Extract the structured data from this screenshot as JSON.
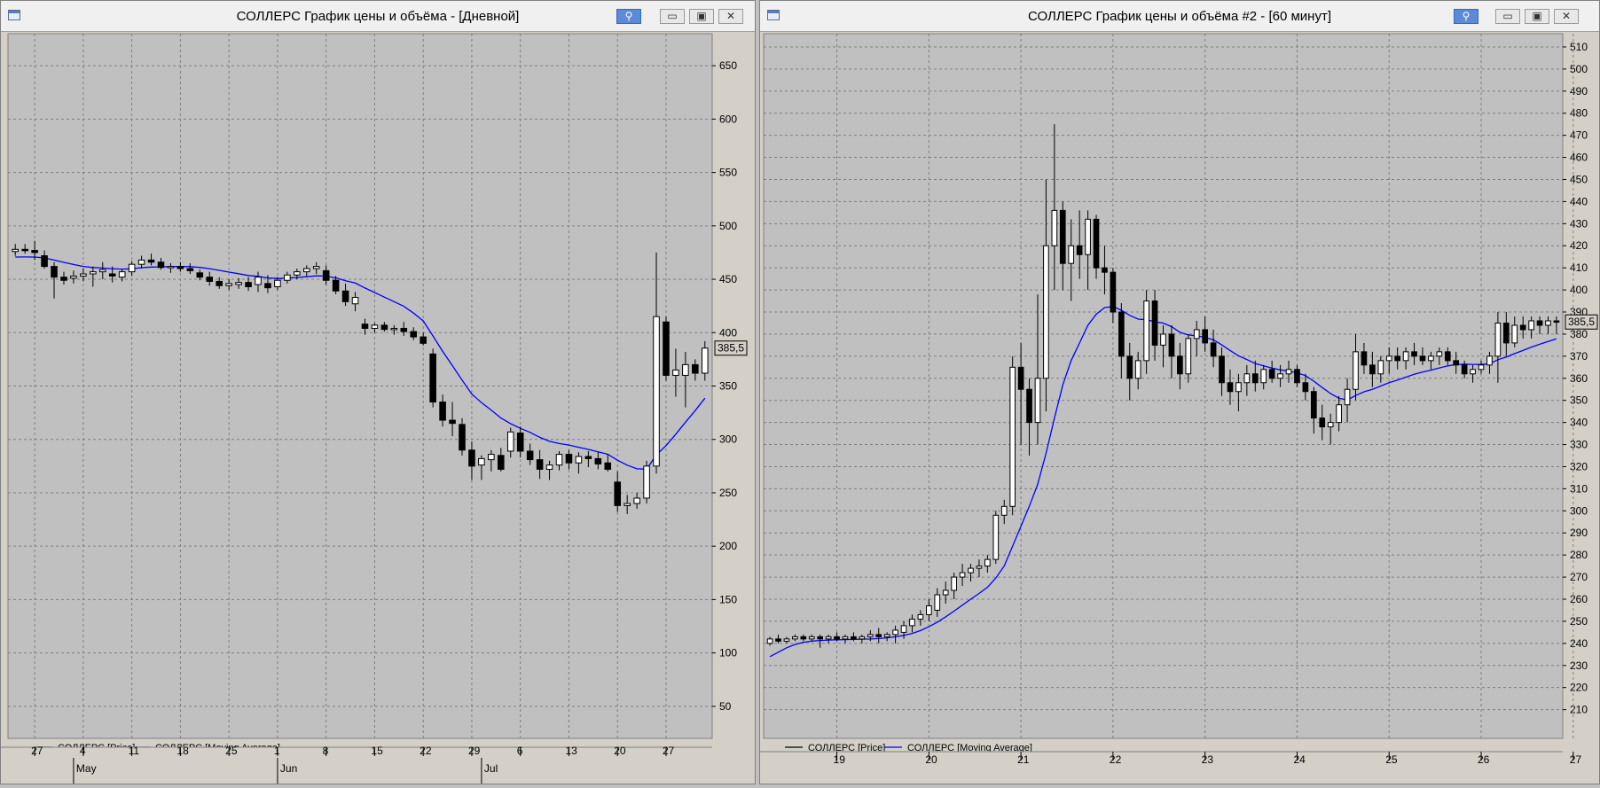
{
  "windows": [
    {
      "title": "СОЛЛЕРС График цены и объёма - [Дневной]",
      "icons": [
        "window-icon",
        "pin-icon",
        "minimize-icon",
        "maximize-icon",
        "close-icon"
      ]
    },
    {
      "title": "СОЛЛЕРС График цены и объёма #2 - [60 минут]",
      "icons": [
        "window-icon",
        "pin-icon",
        "minimize-icon",
        "maximize-icon",
        "close-icon"
      ]
    }
  ],
  "colors": {
    "plot_bg": "#c0c0c0",
    "grid": "#7f7f7f",
    "ma_line": "#0000ff",
    "candle_up": "#ffffff",
    "candle_down": "#000000"
  },
  "chart_data": [
    {
      "type": "candlestick",
      "title": "СОЛЛЕРС График цены и объёма - [Дневной]",
      "ylim": [
        20,
        680
      ],
      "yticks": [
        50,
        100,
        150,
        200,
        250,
        300,
        350,
        400,
        450,
        500,
        550,
        600,
        650
      ],
      "last_price_label": "385,5",
      "last_price": 385.5,
      "legend": [
        "СОЛЛЕРС [Price]",
        "СОЛЛЕРС [Moving Average]"
      ],
      "x_day_ticks": [
        {
          "label": "27",
          "i": 2
        },
        {
          "label": "4",
          "i": 7
        },
        {
          "label": "11",
          "i": 12
        },
        {
          "label": "18",
          "i": 17
        },
        {
          "label": "25",
          "i": 22
        },
        {
          "label": "1",
          "i": 27
        },
        {
          "label": "8",
          "i": 32
        },
        {
          "label": "15",
          "i": 37
        },
        {
          "label": "22",
          "i": 42
        },
        {
          "label": "29",
          "i": 47
        },
        {
          "label": "6",
          "i": 52
        },
        {
          "label": "13",
          "i": 57
        },
        {
          "label": "20",
          "i": 62
        },
        {
          "label": "27",
          "i": 67
        }
      ],
      "x_month_ticks": [
        {
          "label": "May",
          "i": 6
        },
        {
          "label": "Jun",
          "i": 27
        },
        {
          "label": "Jul",
          "i": 48
        }
      ],
      "ohlc": [
        [
          476,
          483,
          472,
          478
        ],
        [
          478,
          483,
          474,
          477
        ],
        [
          477,
          486,
          468,
          475
        ],
        [
          472,
          477,
          460,
          462
        ],
        [
          462,
          466,
          432,
          452
        ],
        [
          452,
          457,
          445,
          449
        ],
        [
          451,
          458,
          446,
          453
        ],
        [
          453,
          460,
          448,
          455
        ],
        [
          455,
          462,
          443,
          457
        ],
        [
          457,
          466,
          450,
          459
        ],
        [
          455,
          462,
          447,
          453
        ],
        [
          452,
          460,
          448,
          457
        ],
        [
          457,
          467,
          453,
          464
        ],
        [
          464,
          472,
          460,
          468
        ],
        [
          468,
          474,
          463,
          466
        ],
        [
          466,
          470,
          459,
          461
        ],
        [
          461,
          465,
          456,
          462
        ],
        [
          462,
          466,
          457,
          460
        ],
        [
          460,
          465,
          455,
          458
        ],
        [
          456,
          459,
          449,
          452
        ],
        [
          452,
          457,
          444,
          448
        ],
        [
          448,
          452,
          441,
          444
        ],
        [
          444,
          450,
          440,
          446
        ],
        [
          445,
          451,
          441,
          447
        ],
        [
          447,
          452,
          439,
          443
        ],
        [
          445,
          457,
          438,
          452
        ],
        [
          446,
          454,
          437,
          442
        ],
        [
          443,
          452,
          440,
          449
        ],
        [
          449,
          457,
          446,
          454
        ],
        [
          454,
          460,
          450,
          457
        ],
        [
          457,
          463,
          453,
          460
        ],
        [
          460,
          466,
          455,
          462
        ],
        [
          458,
          463,
          445,
          449
        ],
        [
          449,
          453,
          436,
          439
        ],
        [
          439,
          446,
          425,
          429
        ],
        [
          427,
          438,
          420,
          433
        ],
        [
          408,
          413,
          398,
          404
        ],
        [
          404,
          409,
          400,
          407
        ],
        [
          407,
          410,
          401,
          403
        ],
        [
          403,
          407,
          398,
          404
        ],
        [
          404,
          410,
          397,
          401
        ],
        [
          401,
          405,
          393,
          396
        ],
        [
          396,
          400,
          388,
          390
        ],
        [
          380,
          385,
          330,
          335
        ],
        [
          335,
          342,
          312,
          318
        ],
        [
          318,
          335,
          303,
          315
        ],
        [
          314,
          320,
          285,
          290
        ],
        [
          290,
          298,
          262,
          275
        ],
        [
          276,
          285,
          262,
          282
        ],
        [
          281,
          290,
          270,
          286
        ],
        [
          285,
          292,
          270,
          272
        ],
        [
          289,
          311,
          283,
          307
        ],
        [
          306,
          312,
          283,
          289
        ],
        [
          289,
          296,
          276,
          281
        ],
        [
          281,
          290,
          263,
          272
        ],
        [
          272,
          280,
          262,
          276
        ],
        [
          276,
          289,
          271,
          286
        ],
        [
          286,
          290,
          272,
          278
        ],
        [
          278,
          288,
          268,
          284
        ],
        [
          284,
          289,
          274,
          282
        ],
        [
          282,
          288,
          272,
          277
        ],
        [
          278,
          286,
          270,
          272
        ],
        [
          260,
          270,
          232,
          238
        ],
        [
          238,
          248,
          230,
          240
        ],
        [
          240,
          250,
          235,
          245
        ],
        [
          245,
          280,
          240,
          275
        ],
        [
          275,
          475,
          268,
          415
        ],
        [
          410,
          415,
          355,
          360
        ],
        [
          360,
          385,
          340,
          365
        ],
        [
          360,
          382,
          330,
          370
        ],
        [
          370,
          375,
          355,
          362
        ],
        [
          362,
          392,
          355,
          385.5
        ]
      ],
      "moving_average": [
        470.8,
        470.9,
        470.8,
        470,
        468,
        465.8,
        463.8,
        462,
        461,
        460.5,
        459.9,
        459.5,
        459.8,
        460.8,
        461.4,
        461.6,
        461.8,
        461.9,
        461.8,
        461.1,
        459.9,
        458.3,
        456.7,
        455.2,
        453.5,
        452.7,
        451.3,
        450.7,
        451,
        451.7,
        452.4,
        453.2,
        452.9,
        451.3,
        448.6,
        446.5,
        441.8,
        437.6,
        433.3,
        429,
        424.6,
        418.3,
        411,
        397,
        382.5,
        369.2,
        355.6,
        342.5,
        334.4,
        327.5,
        320,
        314.7,
        310.4,
        306.6,
        301.9,
        298.2,
        296.1,
        294.7,
        292.6,
        290.6,
        288.3,
        286.1,
        280.5,
        275.9,
        272.5,
        272.1,
        285.5,
        294.2,
        304.8,
        316.1,
        326.9,
        338.6
      ]
    },
    {
      "type": "candlestick",
      "title": "СОЛЛЕРС График цены и объёма #2 - [60 минут]",
      "ylim": [
        197,
        516
      ],
      "yticks": [
        210,
        220,
        230,
        240,
        250,
        260,
        270,
        280,
        290,
        300,
        310,
        320,
        330,
        340,
        350,
        360,
        370,
        380,
        390,
        400,
        410,
        420,
        430,
        440,
        450,
        460,
        470,
        480,
        490,
        500,
        510
      ],
      "last_price_label": "385,5",
      "last_price": 385.5,
      "legend": [
        "СОЛЛЕРС [Price]",
        "СОЛЛЕРС [Moving Average]"
      ],
      "x_day_ticks": [
        {
          "label": "19",
          "i": 8
        },
        {
          "label": "20",
          "i": 19
        },
        {
          "label": "21",
          "i": 30
        },
        {
          "label": "22",
          "i": 41
        },
        {
          "label": "23",
          "i": 52
        },
        {
          "label": "24",
          "i": 63
        },
        {
          "label": "25",
          "i": 74
        },
        {
          "label": "26",
          "i": 85
        },
        {
          "label": "27",
          "i": 96
        }
      ],
      "ohlc": [
        [
          240,
          243,
          239,
          242
        ],
        [
          242,
          244,
          240,
          241
        ],
        [
          241,
          243,
          240,
          242
        ],
        [
          242,
          244,
          241,
          243
        ],
        [
          243,
          244,
          241,
          242
        ],
        [
          242,
          244,
          241,
          243
        ],
        [
          243,
          244,
          238,
          242
        ],
        [
          242,
          244,
          240,
          243
        ],
        [
          243,
          245,
          241,
          242
        ],
        [
          242,
          244,
          240,
          243
        ],
        [
          243,
          245,
          241,
          242
        ],
        [
          242,
          244,
          240,
          243
        ],
        [
          243,
          246,
          241,
          244
        ],
        [
          244,
          247,
          240,
          243
        ],
        [
          243,
          245,
          241,
          244
        ],
        [
          244,
          248,
          240,
          246
        ],
        [
          245,
          250,
          242,
          248
        ],
        [
          248,
          253,
          245,
          251
        ],
        [
          251,
          255,
          248,
          253
        ],
        [
          253,
          260,
          250,
          257
        ],
        [
          255,
          265,
          252,
          262
        ],
        [
          262,
          268,
          258,
          264
        ],
        [
          264,
          272,
          260,
          270
        ],
        [
          270,
          276,
          266,
          272
        ],
        [
          272,
          276,
          268,
          274
        ],
        [
          274,
          278,
          270,
          275
        ],
        [
          275,
          280,
          272,
          278
        ],
        [
          278,
          300,
          276,
          298
        ],
        [
          298,
          305,
          294,
          302
        ],
        [
          302,
          370,
          298,
          365
        ],
        [
          365,
          376,
          330,
          355
        ],
        [
          355,
          360,
          325,
          340
        ],
        [
          340,
          398,
          330,
          360
        ],
        [
          360,
          450,
          345,
          420
        ],
        [
          420,
          475,
          400,
          436
        ],
        [
          436,
          440,
          400,
          412
        ],
        [
          412,
          432,
          395,
          420
        ],
        [
          420,
          436,
          405,
          416
        ],
        [
          416,
          436,
          400,
          432
        ],
        [
          432,
          434,
          405,
          410
        ],
        [
          410,
          420,
          398,
          408
        ],
        [
          408,
          410,
          385,
          390
        ],
        [
          390,
          394,
          360,
          370
        ],
        [
          370,
          376,
          350,
          360
        ],
        [
          360,
          372,
          355,
          368
        ],
        [
          368,
          400,
          362,
          395
        ],
        [
          395,
          400,
          368,
          375
        ],
        [
          375,
          384,
          365,
          380
        ],
        [
          380,
          384,
          360,
          370
        ],
        [
          370,
          376,
          355,
          362
        ],
        [
          362,
          380,
          358,
          378
        ],
        [
          378,
          386,
          370,
          382
        ],
        [
          382,
          388,
          372,
          376
        ],
        [
          376,
          382,
          365,
          370
        ],
        [
          370,
          374,
          352,
          358
        ],
        [
          358,
          364,
          348,
          354
        ],
        [
          354,
          362,
          345,
          358
        ],
        [
          358,
          366,
          352,
          362
        ],
        [
          362,
          368,
          354,
          358
        ],
        [
          358,
          366,
          355,
          364
        ],
        [
          364,
          368,
          358,
          360
        ],
        [
          360,
          366,
          356,
          362
        ],
        [
          362,
          368,
          358,
          364
        ],
        [
          364,
          366,
          356,
          358
        ],
        [
          358,
          362,
          350,
          354
        ],
        [
          354,
          356,
          335,
          342
        ],
        [
          342,
          348,
          332,
          338
        ],
        [
          338,
          344,
          330,
          340
        ],
        [
          340,
          352,
          336,
          348
        ],
        [
          348,
          360,
          340,
          355
        ],
        [
          355,
          380,
          350,
          372
        ],
        [
          372,
          376,
          362,
          366
        ],
        [
          366,
          372,
          356,
          362
        ],
        [
          362,
          370,
          358,
          368
        ],
        [
          368,
          374,
          362,
          370
        ],
        [
          370,
          374,
          364,
          368
        ],
        [
          368,
          374,
          364,
          372
        ],
        [
          372,
          376,
          366,
          370
        ],
        [
          370,
          374,
          366,
          368
        ],
        [
          368,
          372,
          364,
          370
        ],
        [
          370,
          374,
          366,
          372
        ],
        [
          372,
          374,
          366,
          368
        ],
        [
          368,
          372,
          362,
          366
        ],
        [
          366,
          368,
          360,
          362
        ],
        [
          362,
          366,
          358,
          364
        ],
        [
          364,
          368,
          362,
          366
        ],
        [
          366,
          372,
          362,
          370
        ],
        [
          370,
          390,
          358,
          385
        ],
        [
          385,
          390,
          370,
          376
        ],
        [
          376,
          388,
          374,
          384
        ],
        [
          384,
          388,
          378,
          382
        ],
        [
          382,
          388,
          378,
          386
        ],
        [
          386,
          388,
          380,
          384
        ],
        [
          384,
          388,
          380,
          386
        ],
        [
          386,
          388,
          380,
          385.5
        ]
      ],
      "moving_average": [
        234,
        236,
        238,
        239.5,
        240.5,
        241,
        241.3,
        241.5,
        241.6,
        241.7,
        241.8,
        241.9,
        242,
        242.2,
        242.5,
        243,
        243.6,
        244.5,
        245.8,
        247.5,
        249.6,
        252,
        254.6,
        257.3,
        260,
        262.6,
        265.4,
        269.6,
        275,
        284,
        293,
        302,
        312,
        326,
        342,
        357,
        368,
        376,
        384,
        389,
        392,
        392.5,
        390.8,
        388.5,
        386.8,
        386.5,
        385.6,
        385,
        383.4,
        380.8,
        379.6,
        379.2,
        378.5,
        377.4,
        375.1,
        372.6,
        370.2,
        368.5,
        366.7,
        365.6,
        364.6,
        363.8,
        363.2,
        362.5,
        361.2,
        358.7,
        355.8,
        353.1,
        351,
        350.2,
        352.2,
        353.9,
        355,
        356.5,
        358,
        359.2,
        360.5,
        361.8,
        362.8,
        363.7,
        364.7,
        365.6,
        366.2,
        366.4,
        366.3,
        366.3,
        366.6,
        368.4,
        369.6,
        371.2,
        372.6,
        374.1,
        375.4,
        376.7,
        377.9
      ]
    }
  ]
}
